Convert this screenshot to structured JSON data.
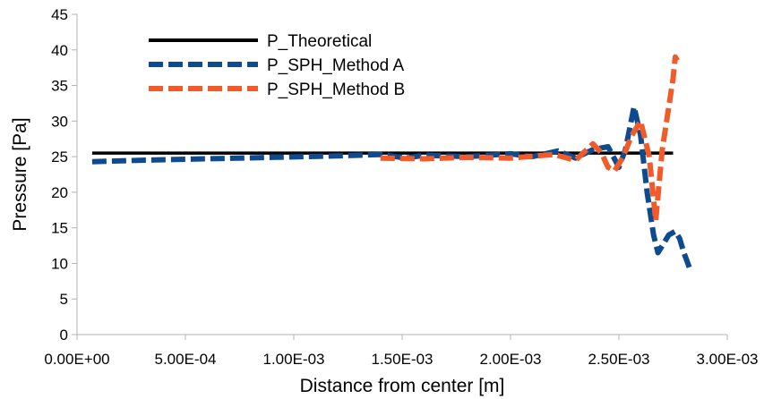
{
  "chart_data": {
    "type": "line",
    "title": "",
    "xlabel": "Distance from center [m]",
    "ylabel": "Pressure [Pa]",
    "xlim": [
      0,
      0.003
    ],
    "ylim": [
      0,
      45
    ],
    "x_ticks": [
      0,
      0.0005,
      0.001,
      0.0015,
      0.002,
      0.0025,
      0.003
    ],
    "x_tick_labels": [
      "0.00E+00",
      "5.00E-04",
      "1.00E-03",
      "1.50E-03",
      "2.00E-03",
      "2.50E-03",
      "3.00E-03"
    ],
    "y_ticks": [
      0,
      5,
      10,
      15,
      20,
      25,
      30,
      35,
      40,
      45
    ],
    "y_tick_labels": [
      "0",
      "5",
      "10",
      "15",
      "20",
      "25",
      "30",
      "35",
      "40",
      "45"
    ],
    "grid": false,
    "legend_position": "top-left",
    "series": [
      {
        "name": "P_Theoretical",
        "color": "#000000",
        "style": "solid",
        "x": [
          7e-05,
          0.00275
        ],
        "y": [
          25.5,
          25.5
        ]
      },
      {
        "name": "P_SPH_Method A",
        "color": "#0d4a8f",
        "style": "dashed",
        "x": [
          7e-05,
          0.0003,
          0.0006,
          0.0009,
          0.0012,
          0.0014,
          0.00152,
          0.0016,
          0.0018,
          0.002,
          0.0021,
          0.00222,
          0.0023,
          0.00238,
          0.00245,
          0.0025,
          0.00253,
          0.00257,
          0.0026,
          0.00263,
          0.00266,
          0.00268,
          0.0027,
          0.00273,
          0.00276,
          0.00278,
          0.0028,
          0.00283
        ],
        "y": [
          24.3,
          24.5,
          24.7,
          24.9,
          25.1,
          25.3,
          24.8,
          25.2,
          25.0,
          25.4,
          25.0,
          25.8,
          24.8,
          26.0,
          26.4,
          23.5,
          26.0,
          32.0,
          28.0,
          20.0,
          14.0,
          11.5,
          12.5,
          14.0,
          14.5,
          13.5,
          11.5,
          9.0
        ]
      },
      {
        "name": "P_SPH_Method B",
        "color": "#f15a29",
        "style": "dashed",
        "x": [
          0.0014,
          0.0016,
          0.0018,
          0.002,
          0.0022,
          0.0023,
          0.00238,
          0.00242,
          0.00245,
          0.00248,
          0.00252,
          0.00256,
          0.0026,
          0.00264,
          0.00267,
          0.0027,
          0.00273,
          0.00275,
          0.00276,
          0.00277
        ],
        "y": [
          24.8,
          24.7,
          24.9,
          24.8,
          25.3,
          24.5,
          26.8,
          25.5,
          23.5,
          23.0,
          25.0,
          28.0,
          30.0,
          25.0,
          16.0,
          26.0,
          32.0,
          36.0,
          39.0,
          38.5
        ]
      }
    ]
  }
}
